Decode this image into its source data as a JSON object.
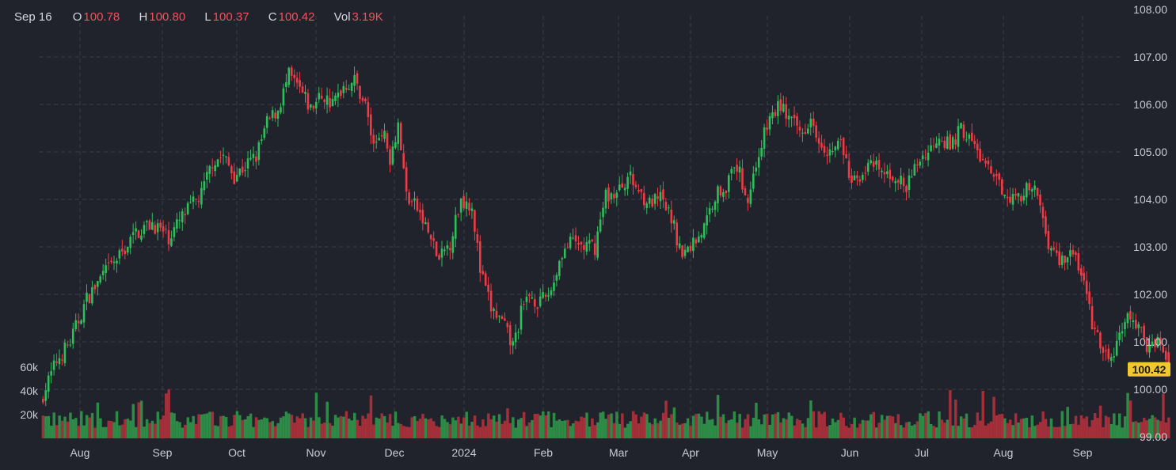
{
  "header": {
    "date": "Sep 16",
    "open_label": "O",
    "open_value": "100.78",
    "high_label": "H",
    "high_value": "100.80",
    "low_label": "L",
    "low_value": "100.37",
    "close_label": "C",
    "close_value": "100.42",
    "vol_label": "Vol",
    "vol_value": "3.19K"
  },
  "colors": {
    "background": "#20222c",
    "up": "#2fbf5a",
    "down": "#ef3b45",
    "grid": "#3a3d4a",
    "axis_text": "#c9ccd4",
    "last_price_bg": "#f2c830"
  },
  "chart_data": {
    "type": "candlestick",
    "x_tick_labels": [
      "Aug",
      "Sep",
      "Oct",
      "Nov",
      "Dec",
      "2024",
      "Feb",
      "Mar",
      "Apr",
      "May",
      "Jun",
      "Jul",
      "Aug",
      "Sep"
    ],
    "y_tick_labels": [
      "108.00",
      "107.00",
      "106.00",
      "105.00",
      "104.00",
      "103.00",
      "102.00",
      "101.00",
      "100.00",
      "99.00"
    ],
    "ylim": [
      99.0,
      108.0
    ],
    "volume_tick_labels": [
      "60k",
      "40k",
      "20k"
    ],
    "volume_max": 80000,
    "last_price": "100.42",
    "close_path_anchors": [
      [
        0,
        99.9
      ],
      [
        5,
        100.6
      ],
      [
        10,
        101.0
      ],
      [
        16,
        101.9
      ],
      [
        22,
        102.4
      ],
      [
        28,
        102.8
      ],
      [
        34,
        103.3
      ],
      [
        40,
        103.5
      ],
      [
        46,
        103.2
      ],
      [
        52,
        103.7
      ],
      [
        58,
        104.1
      ],
      [
        62,
        104.8
      ],
      [
        66,
        104.9
      ],
      [
        70,
        104.5
      ],
      [
        74,
        104.7
      ],
      [
        78,
        104.9
      ],
      [
        82,
        105.6
      ],
      [
        86,
        105.9
      ],
      [
        90,
        106.6
      ],
      [
        94,
        106.3
      ],
      [
        98,
        105.9
      ],
      [
        102,
        106.2
      ],
      [
        106,
        106.0
      ],
      [
        110,
        106.4
      ],
      [
        114,
        106.5
      ],
      [
        118,
        106.0
      ],
      [
        121,
        105.1
      ],
      [
        124,
        105.5
      ],
      [
        127,
        104.9
      ],
      [
        130,
        105.6
      ],
      [
        133,
        104.1
      ],
      [
        137,
        103.8
      ],
      [
        141,
        103.3
      ],
      [
        145,
        102.7
      ],
      [
        149,
        103.1
      ],
      [
        153,
        104.0
      ],
      [
        157,
        103.9
      ],
      [
        160,
        102.5
      ],
      [
        164,
        101.7
      ],
      [
        168,
        101.4
      ],
      [
        172,
        100.9
      ],
      [
        175,
        101.6
      ],
      [
        178,
        102.0
      ],
      [
        182,
        101.8
      ],
      [
        186,
        102.1
      ],
      [
        190,
        102.9
      ],
      [
        194,
        103.1
      ],
      [
        198,
        103.0
      ],
      [
        202,
        103.0
      ],
      [
        206,
        104.1
      ],
      [
        210,
        104.1
      ],
      [
        214,
        104.5
      ],
      [
        218,
        104.2
      ],
      [
        222,
        103.9
      ],
      [
        226,
        104.0
      ],
      [
        230,
        103.6
      ],
      [
        234,
        102.8
      ],
      [
        238,
        103.1
      ],
      [
        242,
        103.4
      ],
      [
        246,
        104.1
      ],
      [
        250,
        104.3
      ],
      [
        254,
        104.7
      ],
      [
        258,
        104.0
      ],
      [
        262,
        105.0
      ],
      [
        266,
        105.7
      ],
      [
        270,
        106.0
      ],
      [
        274,
        105.6
      ],
      [
        278,
        105.4
      ],
      [
        281,
        105.8
      ],
      [
        284,
        105.3
      ],
      [
        288,
        105.0
      ],
      [
        292,
        105.2
      ],
      [
        296,
        104.3
      ],
      [
        300,
        104.6
      ],
      [
        304,
        104.7
      ],
      [
        308,
        104.5
      ],
      [
        312,
        104.5
      ],
      [
        316,
        104.2
      ],
      [
        320,
        104.8
      ],
      [
        324,
        105.0
      ],
      [
        328,
        105.4
      ],
      [
        332,
        105.1
      ],
      [
        336,
        105.5
      ],
      [
        340,
        105.2
      ],
      [
        344,
        104.8
      ],
      [
        348,
        104.4
      ],
      [
        352,
        104.2
      ],
      [
        356,
        104.0
      ],
      [
        360,
        104.2
      ],
      [
        364,
        104.1
      ],
      [
        368,
        103.1
      ],
      [
        372,
        102.7
      ],
      [
        376,
        102.9
      ],
      [
        380,
        102.5
      ],
      [
        384,
        101.4
      ],
      [
        388,
        100.7
      ],
      [
        392,
        100.7
      ],
      [
        396,
        101.5
      ],
      [
        400,
        101.4
      ],
      [
        404,
        100.9
      ],
      [
        408,
        101.1
      ],
      [
        412,
        100.42
      ]
    ]
  }
}
